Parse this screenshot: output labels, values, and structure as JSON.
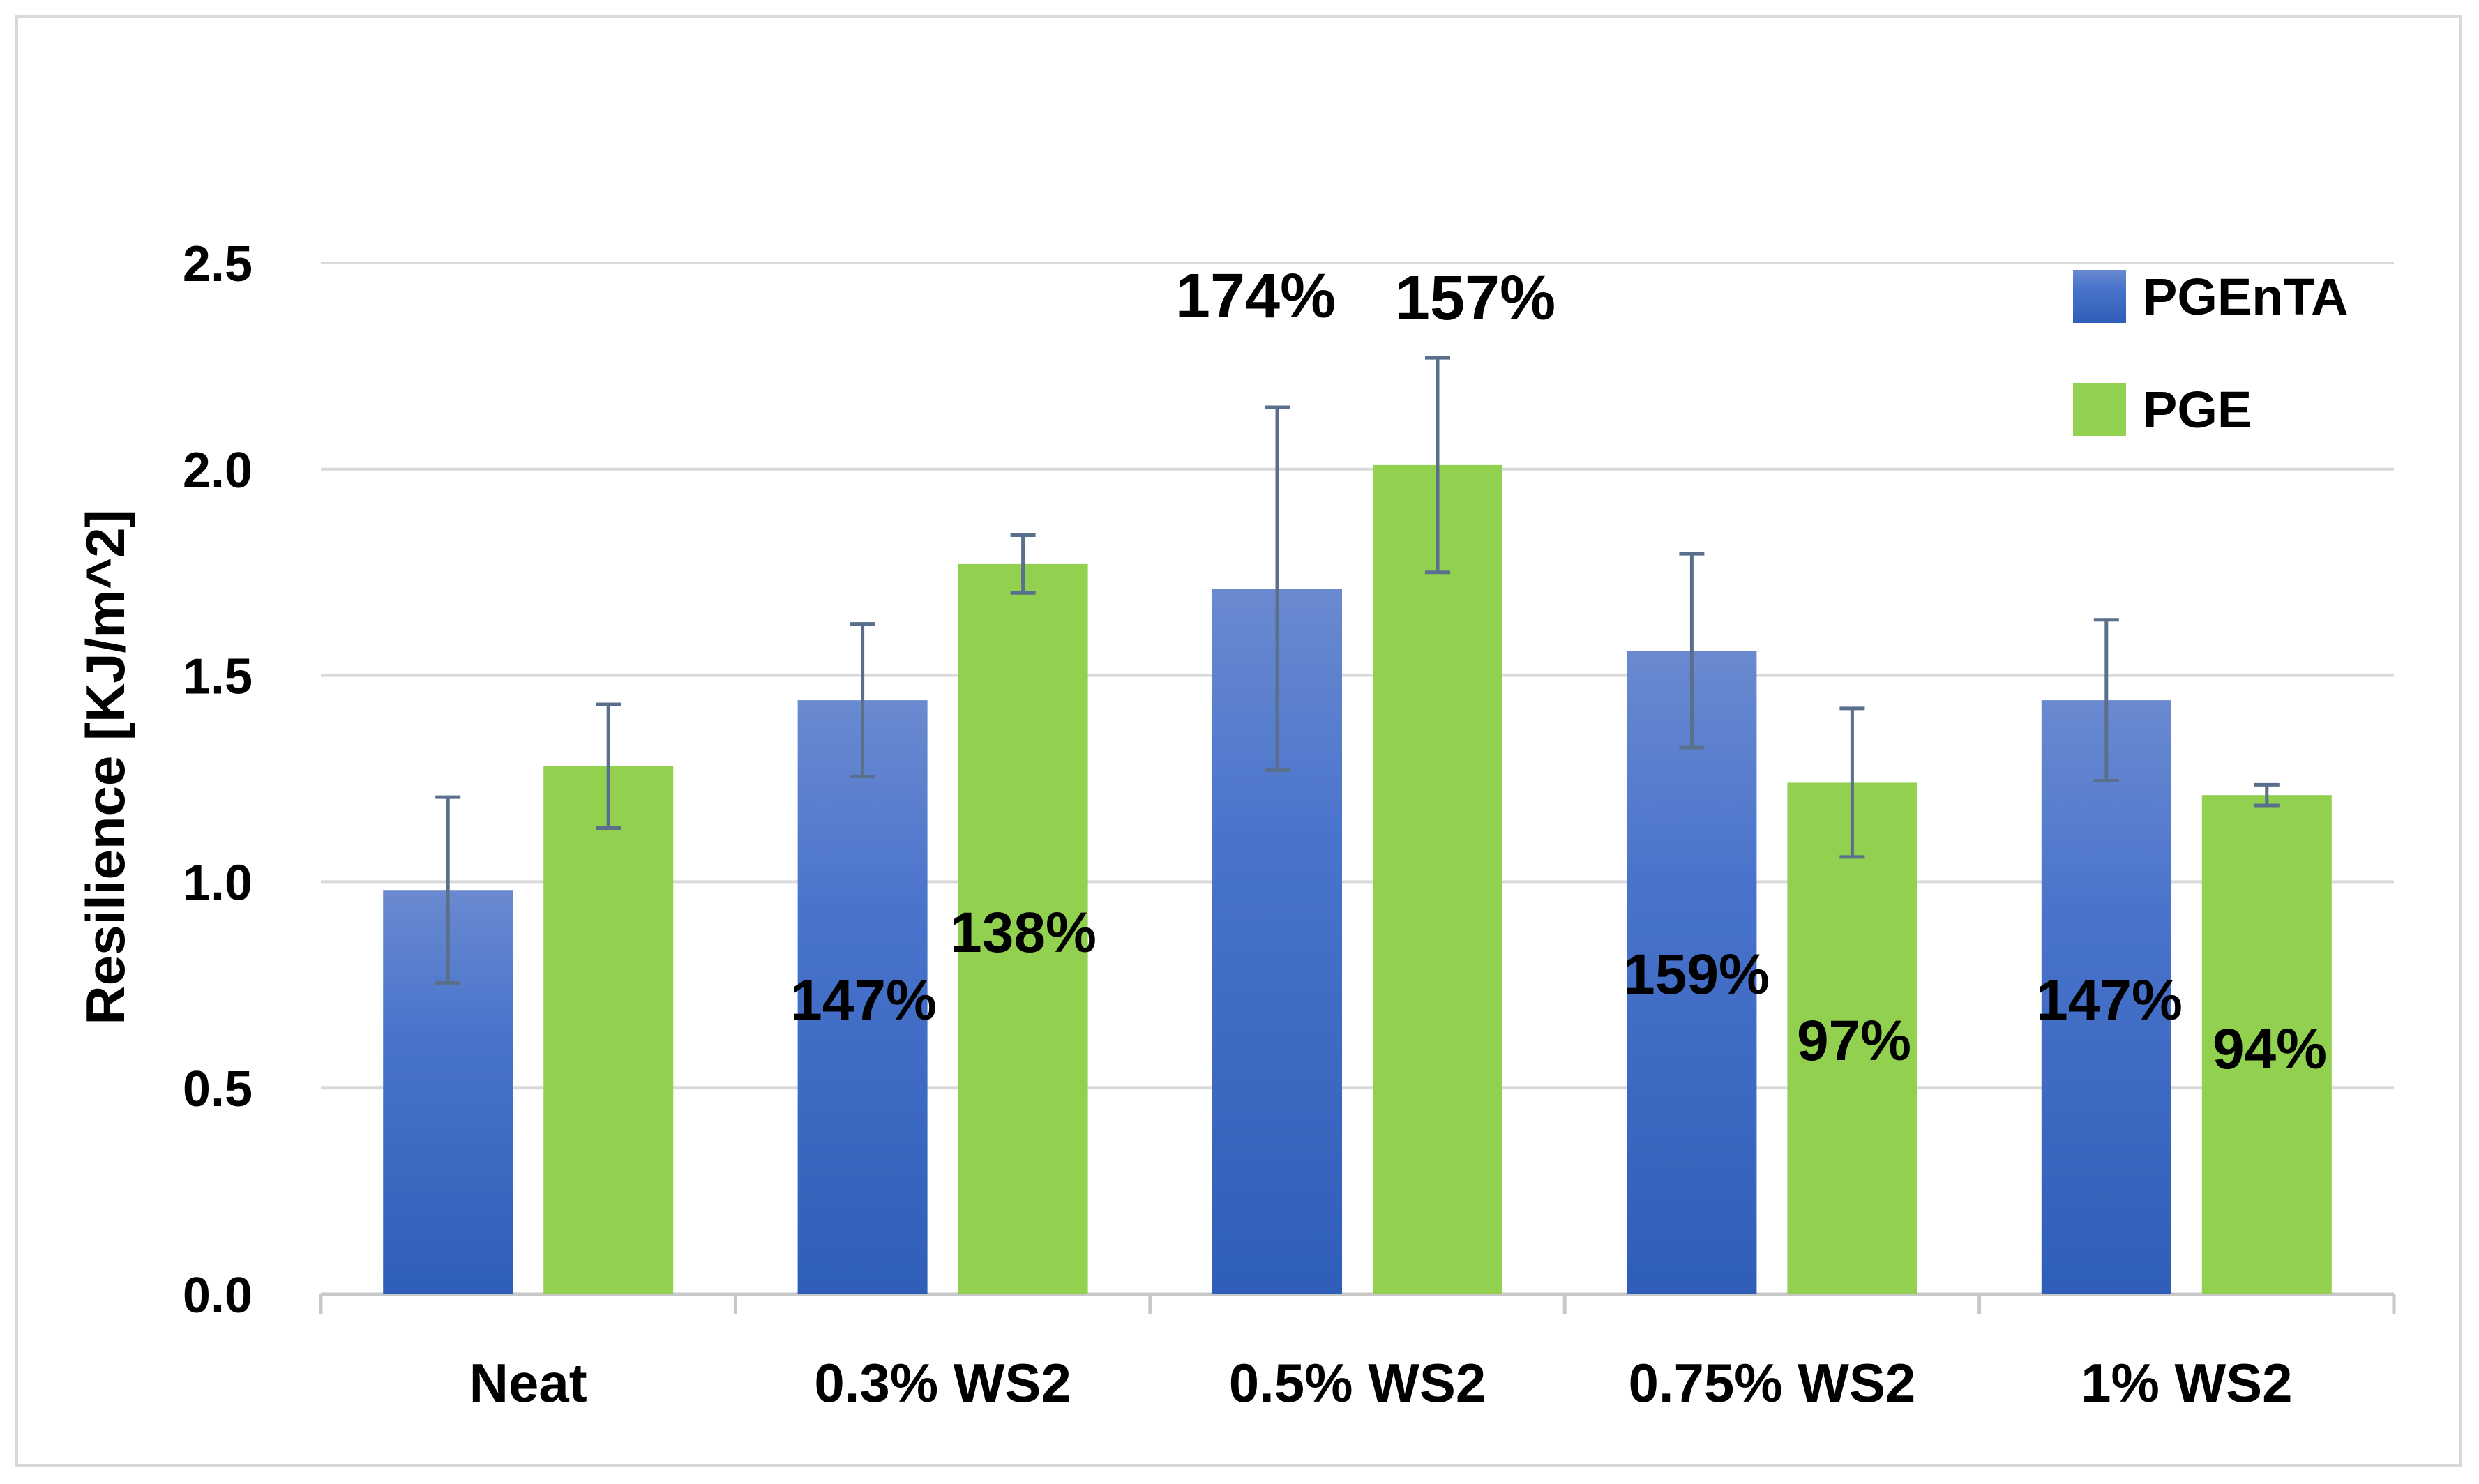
{
  "chart_data": {
    "type": "bar",
    "title": "",
    "xlabel": "",
    "ylabel": "Resilience [KJ/m^2]",
    "ylim": [
      0,
      2.5
    ],
    "yticks": [
      "0.0",
      "0.5",
      "1.0",
      "1.5",
      "2.0",
      "2.5"
    ],
    "ytick_values": [
      0,
      0.5,
      1.0,
      1.5,
      2.0,
      2.5
    ],
    "grid": true,
    "legend_position": "top-right",
    "categories": [
      "Neat",
      "0.3% WS2",
      "0.5% WS2",
      "0.75% WS2",
      "1% WS2"
    ],
    "series": [
      {
        "name": "PGEnTA",
        "color": "#4472c4",
        "values": [
          0.98,
          1.44,
          1.71,
          1.56,
          1.44
        ],
        "errors": [
          0.225,
          0.185,
          0.44,
          0.235,
          0.195
        ],
        "annotations": [
          "",
          "147%",
          "174%",
          "159%",
          "147%"
        ]
      },
      {
        "name": "PGE",
        "color": "#92d050",
        "values": [
          1.28,
          1.77,
          2.01,
          1.24,
          1.21
        ],
        "errors": [
          0.15,
          0.07,
          0.26,
          0.18,
          0.025
        ],
        "annotations": [
          "",
          "138%",
          "157%",
          "97%",
          "94%"
        ]
      }
    ]
  },
  "colors": {
    "error_bar": "#5a6f8c",
    "grid": "#d9d9d9",
    "axis": "#c8c8c8"
  }
}
